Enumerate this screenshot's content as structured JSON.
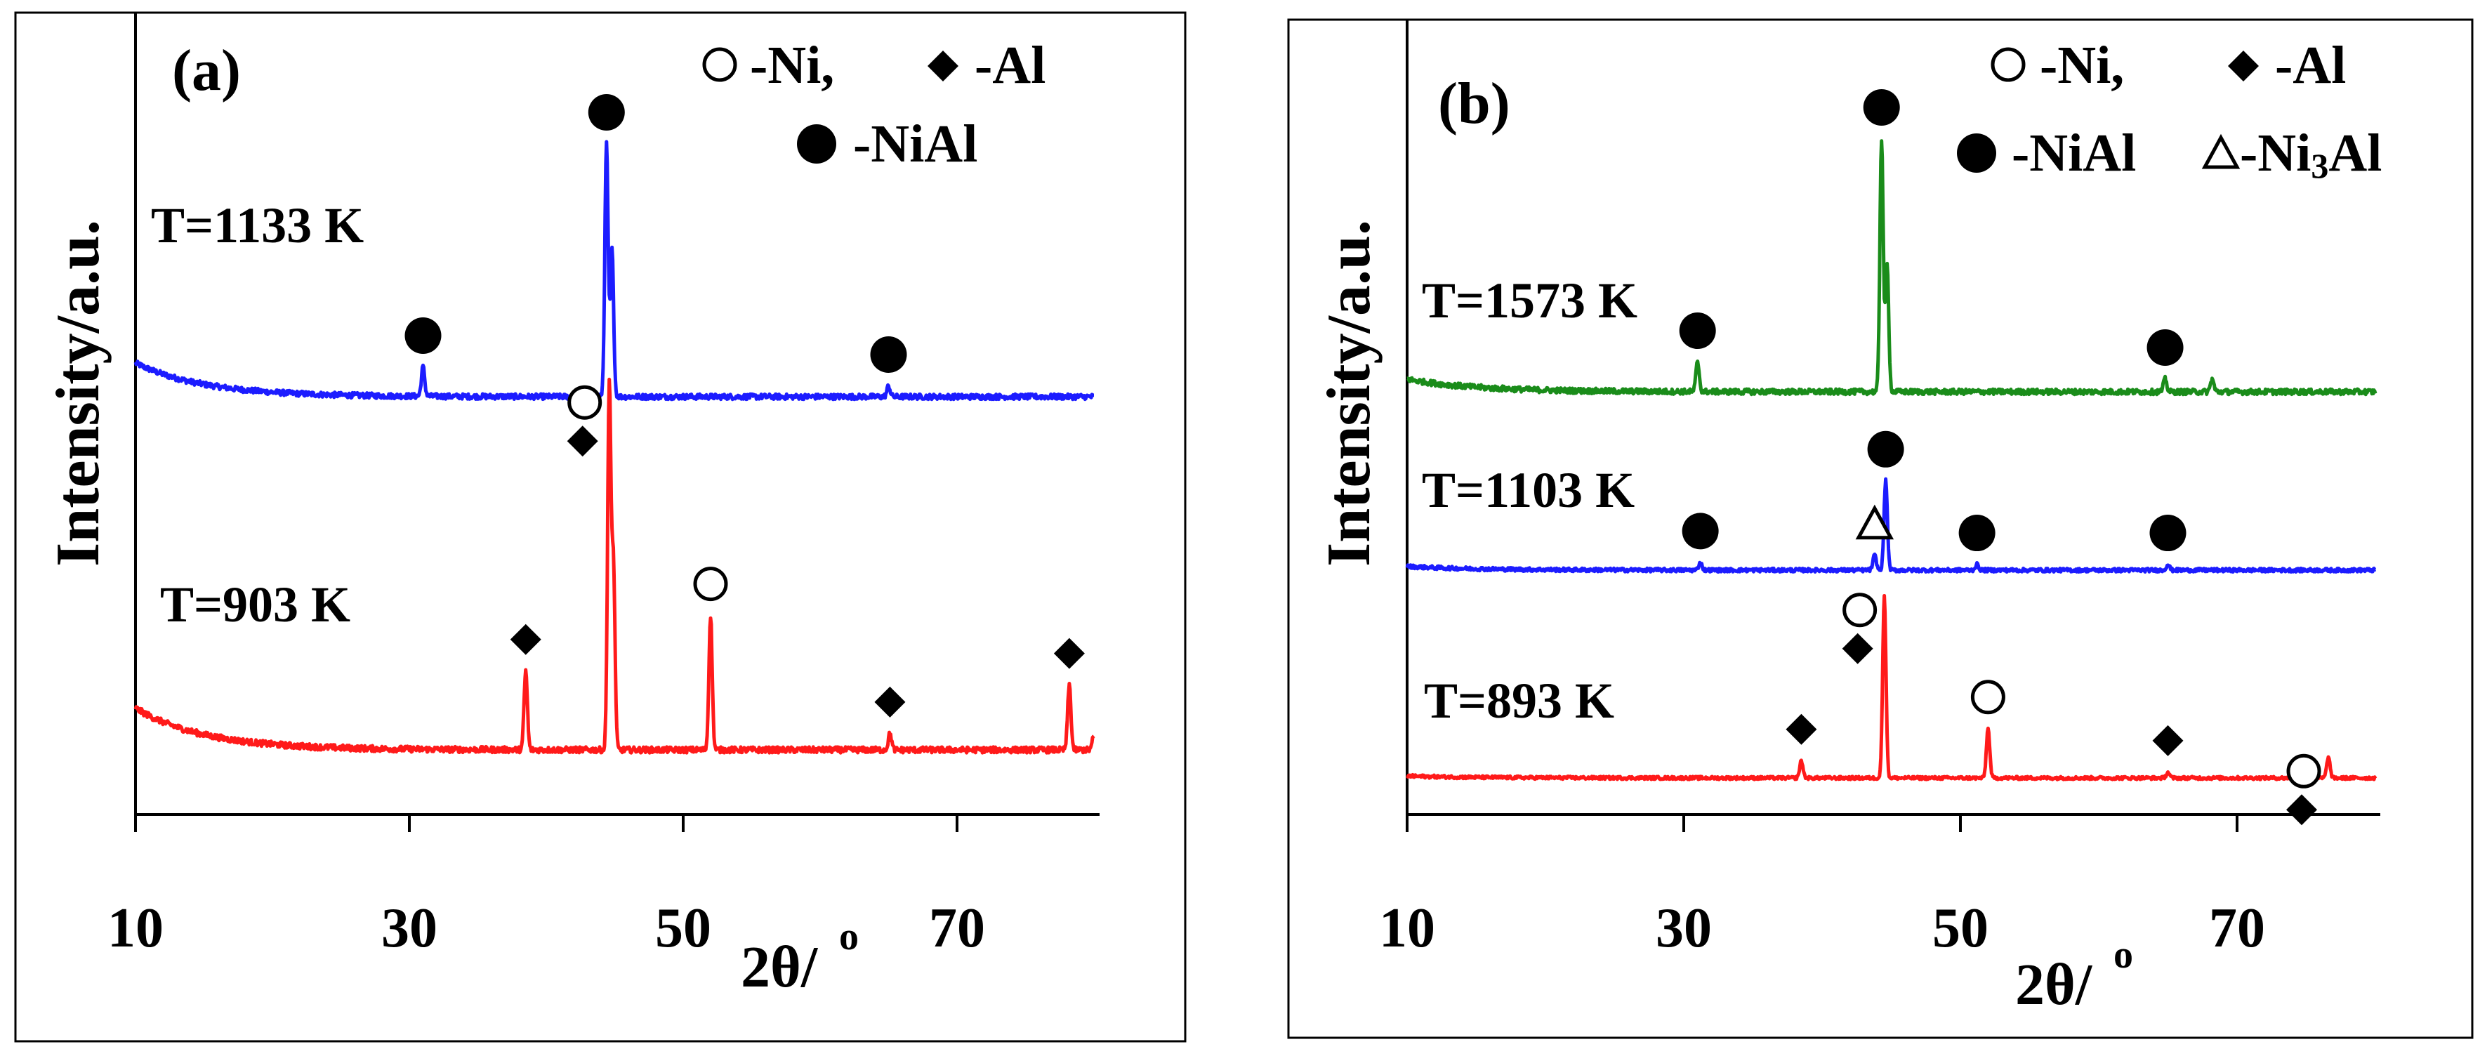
{
  "chart_data": [
    {
      "type": "line",
      "panel_label": "(a)",
      "xlabel": "2θ/",
      "xlabel_degree": "o",
      "ylabel": "Intensity/a.u.",
      "xlim": [
        10,
        80
      ],
      "xticks": [
        "10",
        "30",
        "50",
        "70"
      ],
      "legend": [
        {
          "symbol": "open-circle",
          "text": "-Ni,"
        },
        {
          "symbol": "diamond",
          "text": "-Al"
        },
        {
          "symbol": "filled-circle",
          "text": "-NiAl"
        }
      ],
      "series": [
        {
          "name": "T=1133 K",
          "color": "#1c1cff",
          "baseline": 8,
          "low_angle_rise": 8,
          "noise": 0.8,
          "peaks": [
            [
              31,
              7,
              "filled-circle"
            ],
            [
              44.4,
              60,
              "filled-circle"
            ],
            [
              44.8,
              35,
              ""
            ],
            [
              65,
              2.5,
              "filled-circle"
            ]
          ]
        },
        {
          "name": "T=903 K",
          "color": "#ff1a1a",
          "baseline": 3,
          "low_angle_rise": 9,
          "noise": 0.8,
          "peaks": [
            [
              38.5,
              17,
              "diamond"
            ],
            [
              44.6,
              78,
              "open-circle+diamond"
            ],
            [
              44.9,
              40,
              ""
            ],
            [
              52,
              29,
              "open-circle"
            ],
            [
              65.1,
              3.5,
              "diamond"
            ],
            [
              78.2,
              14,
              "diamond"
            ],
            [
              80,
              3,
              ""
            ]
          ]
        }
      ]
    },
    {
      "type": "line",
      "panel_label": "(b)",
      "xlabel": "2θ/",
      "xlabel_degree": "o",
      "ylabel": "Intensity/a.u.",
      "xlim": [
        10,
        80
      ],
      "xticks": [
        "10",
        "30",
        "50",
        "70"
      ],
      "legend": [
        {
          "symbol": "open-circle",
          "text": "-Ni,"
        },
        {
          "symbol": "diamond",
          "text": "-Al"
        },
        {
          "symbol": "filled-circle",
          "text": "-NiAl"
        },
        {
          "symbol": "triangle",
          "text": "-Ni",
          "sub": "3",
          "tail": "Al"
        }
      ],
      "series": [
        {
          "name": "T=1573 K",
          "color": "#1a8c1a",
          "baseline": 35,
          "low_angle_rise": 3,
          "noise": 0.8,
          "peaks": [
            [
              31,
              7,
              "filled-circle"
            ],
            [
              44.3,
              60,
              "filled-circle"
            ],
            [
              44.7,
              30,
              ""
            ],
            [
              64.8,
              3,
              "filled-circle"
            ],
            [
              68.2,
              3,
              ""
            ]
          ]
        },
        {
          "name": "T=1103 K",
          "color": "#1c1cff",
          "baseline": 17,
          "low_angle_rise": 1,
          "noise": 0.6,
          "peaks": [
            [
              31.2,
              2,
              "filled-circle"
            ],
            [
              43.8,
              4,
              "triangle"
            ],
            [
              44.6,
              24,
              "filled-circle"
            ],
            [
              51.2,
              1.5,
              "filled-circle"
            ],
            [
              65,
              1.5,
              "filled-circle"
            ]
          ]
        },
        {
          "name": "T=893 K",
          "color": "#ff1a1a",
          "baseline": 3,
          "low_angle_rise": 0.5,
          "noise": 0.5,
          "peaks": [
            [
              38.5,
              4.5,
              "diamond"
            ],
            [
              44.5,
              48,
              "open-circle+diamond"
            ],
            [
              52,
              13,
              "open-circle"
            ],
            [
              65,
              1.5,
              "diamond"
            ],
            [
              76.6,
              5.5,
              "open-circle+diamond"
            ]
          ]
        }
      ]
    }
  ]
}
